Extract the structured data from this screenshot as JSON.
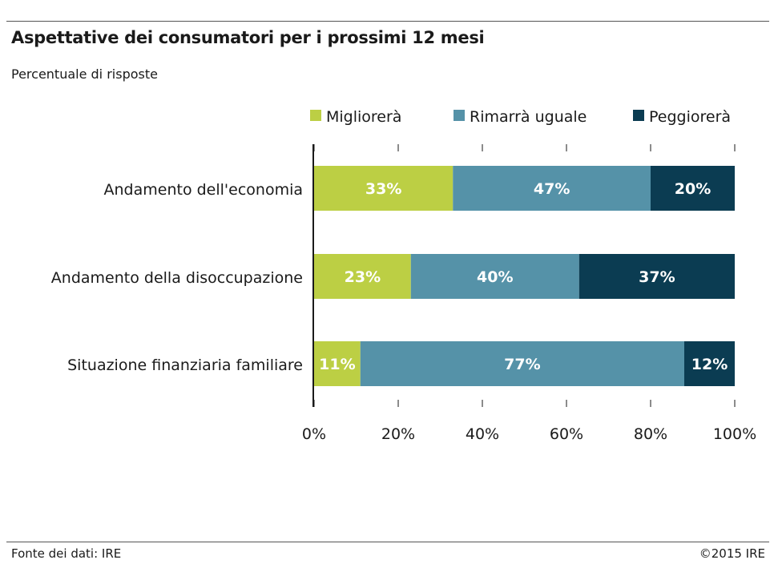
{
  "header": {
    "title": "Aspettative dei consumatori per i prossimi 12 mesi",
    "subtitle": "Percentuale di risposte"
  },
  "footer": {
    "source": "Fonte dei dati:  IRE",
    "copyright": "©2015 IRE"
  },
  "colors": {
    "migliorera": "#bccf44",
    "rimarra": "#5592a8",
    "peggiorera": "#0b3c52"
  },
  "chart_data": {
    "type": "bar",
    "orientation": "horizontal",
    "stacked": true,
    "title": "Aspettative dei consumatori per i prossimi 12 mesi",
    "subtitle": "Percentuale di risposte",
    "categories": [
      "Andamento dell'economia",
      "Andamento della disoccupazione",
      "Situazione finanziaria familiare"
    ],
    "series": [
      {
        "name": "Migliorerà",
        "color": "#bccf44",
        "values": [
          33,
          23,
          11
        ]
      },
      {
        "name": "Rimarrà uguale",
        "color": "#5592a8",
        "values": [
          47,
          40,
          77
        ]
      },
      {
        "name": "Peggiorerà",
        "color": "#0b3c52",
        "values": [
          20,
          37,
          12
        ]
      }
    ],
    "xlim": [
      0,
      100
    ],
    "xticks": [
      0,
      20,
      40,
      60,
      80,
      100
    ],
    "tick_suffix": "%",
    "value_suffix": "%",
    "grid": false,
    "legend_position": "top"
  }
}
